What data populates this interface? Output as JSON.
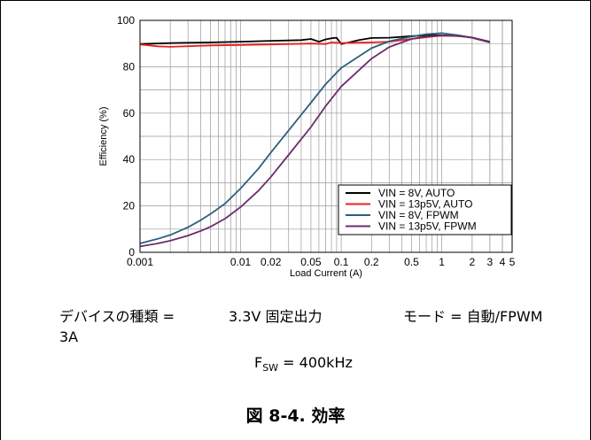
{
  "chart_data": {
    "type": "line",
    "xlabel": "Load Current (A)",
    "ylabel": "Efficiency (%)",
    "xscale": "log",
    "xlim": [
      0.001,
      5
    ],
    "ylim": [
      0,
      100
    ],
    "yticks": [
      "0",
      "20",
      "40",
      "60",
      "80",
      "100"
    ],
    "xticks": [
      {
        "value": 0.001,
        "label": "0.001"
      },
      {
        "value": 0.01,
        "label": "0.01"
      },
      {
        "value": 0.02,
        "label": "0.02"
      },
      {
        "value": 0.05,
        "label": "0.05"
      },
      {
        "value": 0.1,
        "label": "0.1"
      },
      {
        "value": 0.2,
        "label": "0.2"
      },
      {
        "value": 0.5,
        "label": "0.5"
      },
      {
        "value": 1,
        "label": "1"
      },
      {
        "value": 2,
        "label": "2"
      },
      {
        "value": 3,
        "label": "3"
      },
      {
        "value": 4,
        "label": "4"
      },
      {
        "value": 5,
        "label": "5"
      }
    ],
    "grid": true,
    "legend_position": "bottom-right",
    "series": [
      {
        "name": "VIN = 8V, AUTO",
        "color": "#000000",
        "x": [
          0.001,
          0.002,
          0.005,
          0.01,
          0.02,
          0.04,
          0.05,
          0.06,
          0.07,
          0.08,
          0.09,
          0.1,
          0.12,
          0.15,
          0.2,
          0.3,
          0.5,
          0.8,
          1.0,
          1.5,
          2,
          3
        ],
        "y": [
          89.8,
          90.2,
          90.5,
          90.8,
          91.2,
          91.5,
          92.0,
          90.8,
          91.8,
          92.3,
          92.5,
          89.8,
          90.5,
          91.5,
          92.4,
          92.5,
          93.2,
          93.6,
          93.6,
          93.3,
          92.6,
          90.8
        ]
      },
      {
        "name": "VIN = 13p5V, AUTO",
        "color": "#e8201c",
        "x": [
          0.001,
          0.0015,
          0.002,
          0.005,
          0.01,
          0.02,
          0.05,
          0.07,
          0.08,
          0.1,
          0.15,
          0.2,
          0.3,
          0.5,
          0.8,
          1.0,
          1.5,
          2,
          3
        ],
        "y": [
          89.6,
          88.8,
          88.6,
          89.2,
          89.4,
          89.6,
          90.0,
          89.8,
          90.5,
          90.2,
          90.4,
          90.5,
          90.8,
          92.0,
          93.0,
          93.4,
          93.2,
          92.6,
          90.6
        ]
      },
      {
        "name": "VIN = 8V, FPWM",
        "color": "#2d5f7a",
        "x": [
          0.001,
          0.0015,
          0.002,
          0.003,
          0.004,
          0.005,
          0.007,
          0.01,
          0.015,
          0.02,
          0.03,
          0.05,
          0.07,
          0.1,
          0.15,
          0.2,
          0.3,
          0.5,
          0.7,
          1.0,
          1.5,
          2,
          3
        ],
        "y": [
          3.8,
          5.8,
          7.5,
          10.8,
          13.8,
          16.5,
          21.0,
          27.5,
          36.0,
          43.0,
          52.5,
          64.5,
          72.5,
          79.5,
          84.5,
          88.0,
          91.0,
          93.0,
          94.0,
          94.5,
          93.5,
          92.5,
          90.5
        ]
      },
      {
        "name": "VIN = 13p5V, FPWM",
        "color": "#6b2d6b",
        "x": [
          0.001,
          0.0015,
          0.002,
          0.003,
          0.004,
          0.005,
          0.007,
          0.01,
          0.015,
          0.02,
          0.03,
          0.05,
          0.07,
          0.1,
          0.15,
          0.2,
          0.3,
          0.5,
          0.7,
          1.0,
          1.5,
          2,
          3
        ],
        "y": [
          2.5,
          3.8,
          5.0,
          7.2,
          9.2,
          11.0,
          14.5,
          19.5,
          26.5,
          32.5,
          42.0,
          54.0,
          63.0,
          71.5,
          78.5,
          83.5,
          88.5,
          92.0,
          93.0,
          93.5,
          93.2,
          92.5,
          90.5
        ]
      }
    ]
  },
  "caption": {
    "device_label": "デバイスの種類 =",
    "device_value": "3.3V 固定出力",
    "device_value_cont": "3A",
    "mode_label": "モード = 自動/FPWM",
    "fsw_label": "F",
    "fsw_sub": "SW",
    "fsw_value": " = 400kHz",
    "figure_title": "図 8-4. 効率"
  }
}
